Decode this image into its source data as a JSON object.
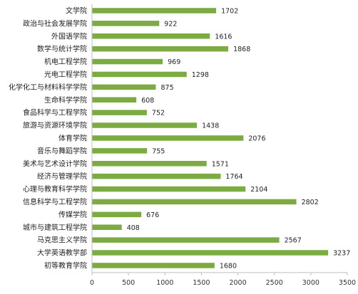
{
  "colors": {
    "bar": "#7bab41",
    "axis": "#bfbfbf",
    "text": "#222222"
  },
  "chart_data": {
    "type": "bar",
    "orientation": "horizontal",
    "categories": [
      "文学院",
      "政治与社会发展学院",
      "外国语学院",
      "数学与统计学院",
      "机电工程学院",
      "光电工程学院",
      "化学化工与材料科学学院",
      "生命科学学院",
      "食品科学与工程学院",
      "旅游与资源环境学院",
      "体育学院",
      "音乐与舞蹈学院",
      "美术与艺术设计学院",
      "经济与管理学院",
      "心理与教育科学学院",
      "信息科学与工程学院",
      "传媒学院",
      "城市与建筑工程学院",
      "马克思主义学院",
      "大学英语教学部",
      "初等教育学院"
    ],
    "values": [
      1702,
      922,
      1616,
      1868,
      969,
      1298,
      875,
      608,
      752,
      1438,
      2076,
      755,
      1571,
      1764,
      2104,
      2802,
      676,
      408,
      2567,
      3237,
      1680
    ],
    "xlim": [
      0,
      3500
    ],
    "xticks": [
      0,
      500,
      1000,
      1500,
      2000,
      2500,
      3000,
      3500
    ],
    "title": "",
    "xlabel": "",
    "ylabel": "",
    "grid": false,
    "legend": "none",
    "data_labels": true
  }
}
